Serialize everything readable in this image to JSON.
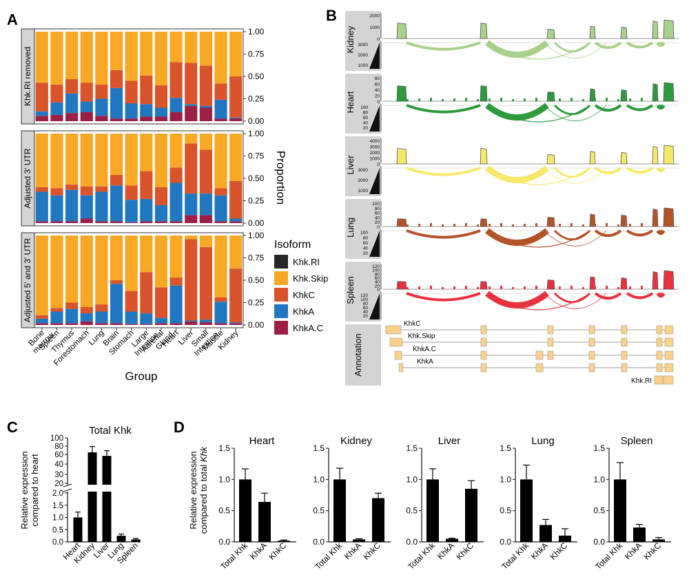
{
  "panel_labels": {
    "a": "A",
    "b": "B",
    "c": "C",
    "d": "D"
  },
  "colors": {
    "khk_ri": "#262626",
    "khk_skip": "#f9a825",
    "khkc": "#d9542a",
    "khka": "#2178c0",
    "khka_c": "#9c1f46",
    "kidney": "#a8d18b",
    "heart": "#2e9a3e",
    "liver": "#f6e96a",
    "lung": "#b4532a",
    "spleen": "#e8323f",
    "exon": "#fbd08a",
    "strip": "#d4d4d4"
  },
  "panel_a": {
    "facets": [
      "Khk.RI removed",
      "Adjusted 3' UTR",
      "Adjusted 5' and 3' UTR"
    ],
    "y_ticks": [
      "0.00",
      "0.25",
      "0.50",
      "0.75",
      "1.00"
    ],
    "ylabel": "Proportion",
    "xlabel": "Group",
    "legend_title": "Isoform",
    "legend": [
      "Khk.RI",
      "Khk.Skip",
      "KhkC",
      "KhkA",
      "KhkA.C"
    ]
  },
  "panel_b": {
    "tissues": [
      "Kidney",
      "Heart",
      "Liver",
      "Lung",
      "Spleen"
    ],
    "cov_ticks": {
      "Kidney": [
        "2000",
        "1000",
        "0"
      ],
      "Heart": [
        "80",
        "60",
        "40",
        "20",
        "0"
      ],
      "Liver": [
        "4000",
        "3000",
        "2000",
        "1000",
        "0"
      ],
      "Lung": [
        "100",
        "80",
        "60",
        "40",
        "20",
        "0"
      ],
      "Spleen": [
        "120",
        "100",
        "80",
        "60",
        "40",
        "20",
        "0"
      ]
    },
    "junc_ticks": {
      "Kidney": [
        "3000",
        "2000",
        "1000"
      ],
      "Heart": [
        "100",
        "80",
        "60",
        "40",
        "20"
      ],
      "Liver": [
        "3000",
        "2000",
        "1000"
      ],
      "Lung": [
        "100",
        "80",
        "60",
        "40",
        "20"
      ],
      "Spleen": [
        "120",
        "100",
        "80",
        "60",
        "40",
        "20"
      ]
    },
    "annotation_label": "Annotation",
    "transcripts": [
      "KhkC",
      "Khk.Skip",
      "KhkA.C",
      "KhkA",
      "Khk.RI"
    ]
  },
  "chart_data": [
    {
      "panel": "A",
      "type": "bar",
      "stacked": true,
      "categories": [
        "Bone marrow",
        "Spleen",
        "Thymus",
        "Forestomach",
        "Lung",
        "Brain",
        "Stomach",
        "Large Intestine",
        "Adrenal Gland",
        "Heart",
        "Liver",
        "Small Intestine",
        "Muscle",
        "Kidney"
      ],
      "xlabel": "Group",
      "ylabel": "Proportion",
      "ylim": [
        0,
        1
      ],
      "facets": [
        {
          "name": "Khk.RI removed",
          "series": [
            {
              "name": "KhkA.C",
              "values": [
                0.06,
                0.07,
                0.09,
                0.1,
                0.06,
                0.03,
                0.03,
                0.05,
                0.05,
                0.1,
                0.17,
                0.15,
                0.03,
                0.03
              ]
            },
            {
              "name": "KhkA",
              "values": [
                0.05,
                0.14,
                0.22,
                0.12,
                0.19,
                0.34,
                0.17,
                0.14,
                0.1,
                0.16,
                0.02,
                0.02,
                0.21,
                0.01
              ]
            },
            {
              "name": "KhkC",
              "values": [
                0.32,
                0.2,
                0.16,
                0.21,
                0.16,
                0.2,
                0.25,
                0.32,
                0.25,
                0.4,
                0.46,
                0.45,
                0.18,
                0.46
              ]
            },
            {
              "name": "Khk.Skip",
              "values": [
                0.57,
                0.59,
                0.53,
                0.57,
                0.59,
                0.43,
                0.55,
                0.49,
                0.6,
                0.34,
                0.35,
                0.38,
                0.58,
                0.5
              ]
            },
            {
              "name": "Khk.RI",
              "values": [
                0,
                0,
                0,
                0,
                0,
                0,
                0,
                0,
                0,
                0,
                0,
                0,
                0,
                0
              ]
            }
          ]
        },
        {
          "name": "Adjusted 3' UTR",
          "series": [
            {
              "name": "KhkA.C",
              "values": [
                0.02,
                0.02,
                0.02,
                0.05,
                0.02,
                0.02,
                0.01,
                0.02,
                0.02,
                0.02,
                0.09,
                0.09,
                0.02,
                0.02
              ]
            },
            {
              "name": "KhkA",
              "values": [
                0.33,
                0.29,
                0.35,
                0.26,
                0.33,
                0.4,
                0.25,
                0.25,
                0.18,
                0.43,
                0.24,
                0.24,
                0.29,
                0.03
              ]
            },
            {
              "name": "KhkC",
              "values": [
                0.05,
                0.08,
                0.06,
                0.1,
                0.06,
                0.12,
                0.16,
                0.31,
                0.2,
                0.17,
                0.56,
                0.49,
                0.08,
                0.42
              ]
            },
            {
              "name": "Khk.Skip",
              "values": [
                0.6,
                0.61,
                0.57,
                0.59,
                0.59,
                0.46,
                0.58,
                0.42,
                0.6,
                0.38,
                0.11,
                0.18,
                0.61,
                0.53
              ]
            },
            {
              "name": "Khk.RI",
              "values": [
                0,
                0,
                0,
                0,
                0,
                0,
                0,
                0,
                0,
                0,
                0,
                0,
                0,
                0
              ]
            }
          ]
        },
        {
          "name": "Adjusted 5' and 3' UTR",
          "series": [
            {
              "name": "KhkA.C",
              "values": [
                0.02,
                0.02,
                0.02,
                0.04,
                0.02,
                0.02,
                0.01,
                0.01,
                0.02,
                0.02,
                0.04,
                0.03,
                0.02,
                0.02
              ]
            },
            {
              "name": "KhkA",
              "values": [
                0.05,
                0.13,
                0.16,
                0.09,
                0.13,
                0.44,
                0.14,
                0.12,
                0.06,
                0.42,
                0.01,
                0.03,
                0.24,
                0.01
              ]
            },
            {
              "name": "KhkC",
              "values": [
                0.04,
                0.04,
                0.07,
                0.07,
                0.08,
                0.04,
                0.23,
                0.46,
                0.34,
                0.09,
                0.91,
                0.81,
                0.05,
                0.6
              ]
            },
            {
              "name": "Khk.Skip",
              "values": [
                0.89,
                0.81,
                0.75,
                0.8,
                0.77,
                0.5,
                0.62,
                0.41,
                0.58,
                0.47,
                0.04,
                0.13,
                0.69,
                0.37
              ]
            },
            {
              "name": "Khk.RI",
              "values": [
                0,
                0,
                0,
                0,
                0,
                0,
                0,
                0,
                0,
                0,
                0,
                0,
                0,
                0
              ]
            }
          ]
        }
      ],
      "legend_title": "Isoform",
      "legend_placement": "right"
    },
    {
      "panel": "C",
      "type": "bar",
      "title": "Total Khk",
      "categories": [
        "Heart",
        "Kidney",
        "Liver",
        "Lung",
        "Spleen"
      ],
      "values": [
        1.0,
        65,
        57,
        0.25,
        0.1
      ],
      "errors": [
        0.22,
        14,
        12,
        0.07,
        0.04
      ],
      "ylabel": "Relative expression compared to heart",
      "y_broken": true,
      "y_ticks_lower": [
        "0.0",
        "0.5",
        "1.0",
        "1.5",
        "2.0"
      ],
      "y_ticks_upper": [
        "20",
        "30",
        "40",
        "60",
        "80",
        "100"
      ]
    },
    {
      "panel": "D",
      "type": "bar",
      "ylabel_prefix": "Relative expression",
      "ylabel_text": "compared to total",
      "ylabel_italic": "Khk",
      "ylim": [
        0,
        1.5
      ],
      "y_ticks": [
        "0.0",
        "0.5",
        "1.0",
        "1.5"
      ],
      "categories": [
        "Total Khk",
        "KhkA",
        "KhkC"
      ],
      "facets": [
        {
          "title": "Heart",
          "values": [
            1.0,
            0.64,
            0.02
          ],
          "errors": [
            0.17,
            0.14,
            0.01
          ]
        },
        {
          "title": "Kidney",
          "values": [
            1.0,
            0.04,
            0.7
          ],
          "errors": [
            0.18,
            0.01,
            0.08
          ]
        },
        {
          "title": "Liver",
          "values": [
            1.0,
            0.05,
            0.85
          ],
          "errors": [
            0.17,
            0.01,
            0.13
          ]
        },
        {
          "title": "Lung",
          "values": [
            1.0,
            0.27,
            0.1
          ],
          "errors": [
            0.23,
            0.09,
            0.11
          ]
        },
        {
          "title": "Spleen",
          "values": [
            1.0,
            0.23,
            0.04
          ],
          "errors": [
            0.27,
            0.05,
            0.03
          ]
        }
      ]
    }
  ]
}
